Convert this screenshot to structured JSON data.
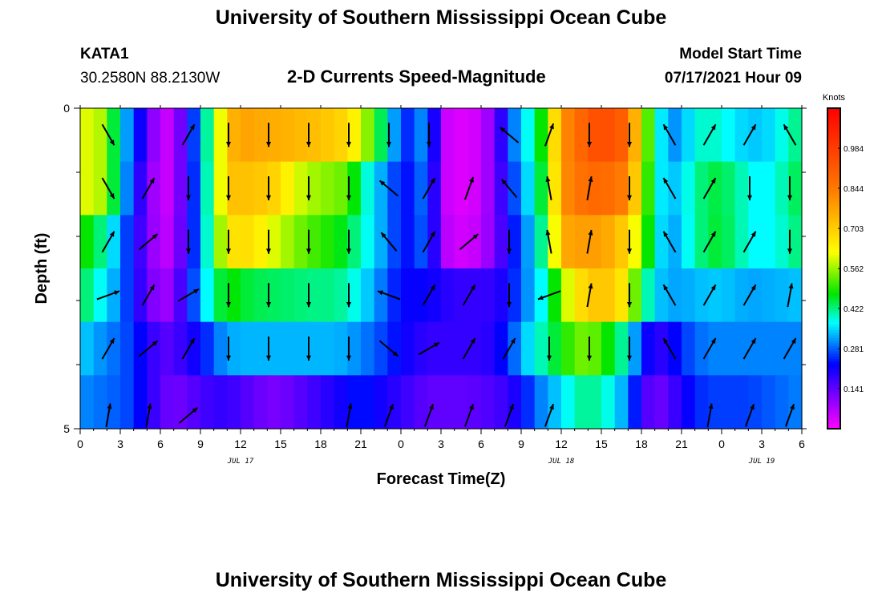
{
  "header": {
    "title": "University of Southern Mississippi Ocean Cube",
    "station_id": "KATA1",
    "station_coords": "30.2580N  88.2130W",
    "product": "2-D Currents Speed-Magnitude",
    "model_start_label": "Model Start Time",
    "model_start_value": "07/17/2021 Hour 09"
  },
  "footer": {
    "title": "University of Southern Mississippi Ocean Cube"
  },
  "chart_data": {
    "type": "heatmap",
    "title": "2-D Currents Speed-Magnitude",
    "xlabel": "Forecast Time(Z)",
    "ylabel": "Depth (ft)",
    "x_range_hours": [
      0,
      54
    ],
    "x_tick_labels": [
      "0",
      "3",
      "6",
      "9",
      "12",
      "15",
      "18",
      "21",
      "0",
      "3",
      "6",
      "9",
      "12",
      "15",
      "18",
      "21",
      "0",
      "3",
      "6"
    ],
    "x_minor_tick_step_hours": 1,
    "date_labels": [
      {
        "hour": 12,
        "text": "JUL 17"
      },
      {
        "hour": 36,
        "text": "JUL 18"
      },
      {
        "hour": 51,
        "text": "JUL 19"
      }
    ],
    "y_range_ft": [
      0,
      5
    ],
    "y_tick_labels": [
      {
        "depth": 0,
        "text": "0"
      },
      {
        "depth": 5,
        "text": "5"
      }
    ],
    "y_minor_ticks": [
      1,
      2,
      3,
      4
    ],
    "depth_rows": [
      0,
      1,
      2,
      3,
      4
    ],
    "hours": [
      0,
      1,
      2,
      3,
      4,
      5,
      6,
      7,
      8,
      9,
      10,
      11,
      12,
      13,
      14,
      15,
      16,
      17,
      18,
      19,
      20,
      21,
      22,
      23,
      24,
      25,
      26,
      27,
      28,
      29,
      30,
      31,
      32,
      33,
      34,
      35,
      36,
      37,
      38,
      39,
      40,
      41,
      42,
      43,
      44,
      45,
      46,
      47,
      48,
      49,
      50,
      51,
      52,
      53,
      54
    ],
    "speed_knots": [
      [
        0.6,
        0.6,
        0.55,
        0.35,
        0.28,
        0.15,
        0.05,
        0.05,
        0.2,
        0.32,
        0.5,
        0.72,
        0.78,
        0.76,
        0.76,
        0.75,
        0.74,
        0.73,
        0.72,
        0.7,
        0.68,
        0.6,
        0.5,
        0.38,
        0.25,
        0.25,
        0.35,
        0.06,
        0.03,
        0.03,
        0.05,
        0.12,
        0.25,
        0.35,
        0.4,
        0.55,
        0.8,
        0.85,
        0.92,
        0.95,
        0.93,
        0.88,
        0.62,
        0.42,
        0.3,
        0.32,
        0.38,
        0.4,
        0.38,
        0.36,
        0.34,
        0.34,
        0.36,
        0.4,
        0.43
      ],
      [
        0.6,
        0.6,
        0.55,
        0.35,
        0.25,
        0.12,
        0.05,
        0.05,
        0.2,
        0.3,
        0.5,
        0.72,
        0.72,
        0.72,
        0.7,
        0.68,
        0.6,
        0.58,
        0.55,
        0.55,
        0.52,
        0.42,
        0.35,
        0.3,
        0.23,
        0.24,
        0.32,
        0.06,
        0.03,
        0.03,
        0.05,
        0.12,
        0.22,
        0.32,
        0.38,
        0.52,
        0.8,
        0.84,
        0.88,
        0.88,
        0.86,
        0.82,
        0.6,
        0.4,
        0.32,
        0.36,
        0.4,
        0.45,
        0.44,
        0.42,
        0.38,
        0.36,
        0.38,
        0.42,
        0.45
      ],
      [
        0.5,
        0.45,
        0.4,
        0.3,
        0.22,
        0.12,
        0.06,
        0.06,
        0.2,
        0.3,
        0.48,
        0.65,
        0.68,
        0.66,
        0.62,
        0.58,
        0.55,
        0.52,
        0.5,
        0.48,
        0.45,
        0.4,
        0.35,
        0.3,
        0.23,
        0.24,
        0.3,
        0.08,
        0.04,
        0.04,
        0.06,
        0.12,
        0.2,
        0.28,
        0.35,
        0.48,
        0.75,
        0.78,
        0.78,
        0.78,
        0.74,
        0.68,
        0.55,
        0.4,
        0.3,
        0.35,
        0.4,
        0.45,
        0.45,
        0.42,
        0.38,
        0.36,
        0.38,
        0.4,
        0.44
      ],
      [
        0.45,
        0.4,
        0.35,
        0.3,
        0.22,
        0.14,
        0.08,
        0.1,
        0.22,
        0.32,
        0.42,
        0.48,
        0.46,
        0.44,
        0.44,
        0.43,
        0.43,
        0.42,
        0.42,
        0.42,
        0.4,
        0.36,
        0.32,
        0.27,
        0.22,
        0.22,
        0.22,
        0.2,
        0.18,
        0.18,
        0.18,
        0.18,
        0.22,
        0.28,
        0.34,
        0.4,
        0.55,
        0.65,
        0.7,
        0.72,
        0.7,
        0.62,
        0.45,
        0.35,
        0.32,
        0.32,
        0.33,
        0.34,
        0.34,
        0.33,
        0.32,
        0.32,
        0.33,
        0.33,
        0.34
      ],
      [
        0.35,
        0.32,
        0.3,
        0.28,
        0.25,
        0.2,
        0.15,
        0.15,
        0.2,
        0.22,
        0.28,
        0.32,
        0.33,
        0.33,
        0.33,
        0.33,
        0.33,
        0.33,
        0.33,
        0.33,
        0.32,
        0.3,
        0.28,
        0.25,
        0.22,
        0.2,
        0.18,
        0.18,
        0.18,
        0.18,
        0.18,
        0.2,
        0.25,
        0.32,
        0.38,
        0.42,
        0.48,
        0.52,
        0.55,
        0.5,
        0.45,
        0.38,
        0.25,
        0.18,
        0.2,
        0.25,
        0.28,
        0.3,
        0.3,
        0.3,
        0.3,
        0.3,
        0.3,
        0.3,
        0.3
      ]
    ],
    "surface_row_extra": [
      0.3,
      0.3,
      0.28,
      0.28,
      0.25,
      0.2,
      0.15,
      0.12,
      0.14,
      0.16,
      0.18,
      0.18,
      0.16,
      0.14,
      0.12,
      0.12,
      0.14,
      0.16,
      0.18,
      0.2,
      0.22,
      0.24,
      0.22,
      0.2,
      0.18,
      0.16,
      0.14,
      0.14,
      0.14,
      0.14,
      0.15,
      0.16,
      0.18,
      0.22,
      0.28,
      0.32,
      0.35,
      0.4,
      0.42,
      0.4,
      0.36,
      0.3,
      0.18,
      0.12,
      0.15,
      0.2,
      0.24,
      0.26,
      0.26,
      0.26,
      0.26,
      0.27,
      0.28,
      0.29,
      0.3
    ],
    "vector_hours": [
      3,
      6,
      9,
      12,
      15,
      18,
      21,
      24,
      27,
      30,
      33,
      36,
      39,
      42,
      45,
      48,
      51,
      54
    ],
    "vectors_direction_deg": [
      [
        300,
        null,
        60,
        270,
        270,
        270,
        270,
        270,
        270,
        null,
        140,
        70,
        270,
        270,
        120,
        60,
        60,
        120
      ],
      [
        300,
        60,
        270,
        270,
        270,
        270,
        270,
        140,
        60,
        70,
        130,
        100,
        80,
        270,
        120,
        60,
        270,
        270
      ],
      [
        60,
        40,
        270,
        270,
        270,
        270,
        270,
        130,
        60,
        40,
        270,
        100,
        80,
        270,
        120,
        60,
        60,
        270
      ],
      [
        20,
        60,
        30,
        270,
        270,
        270,
        270,
        160,
        60,
        60,
        270,
        200,
        80,
        270,
        120,
        60,
        60,
        80
      ],
      [
        60,
        40,
        60,
        270,
        270,
        270,
        270,
        320,
        30,
        60,
        60,
        270,
        270,
        270,
        120,
        60,
        60,
        60
      ],
      [
        80,
        80,
        40,
        null,
        null,
        null,
        80,
        70,
        70,
        70,
        70,
        70,
        null,
        null,
        null,
        80,
        70,
        70
      ]
    ],
    "colorbar": {
      "unit_label": "Knots",
      "tick_labels": [
        "0.984",
        "0.844",
        "0.703",
        "0.562",
        "0.422",
        "0.281",
        "0.141"
      ],
      "range": [
        0,
        1.125
      ]
    }
  }
}
